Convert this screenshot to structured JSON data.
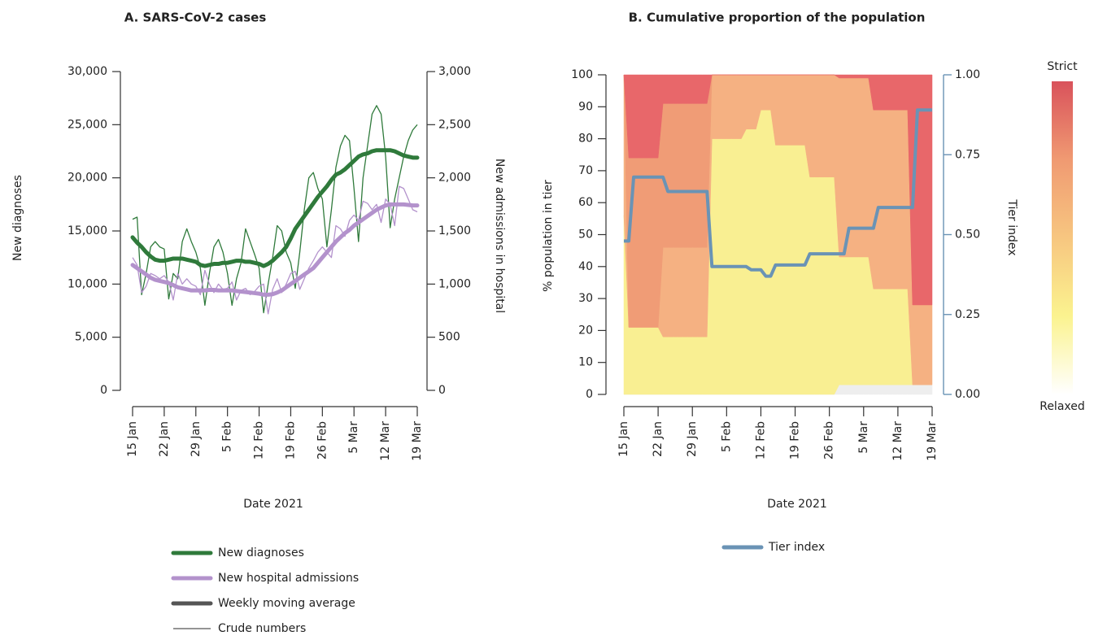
{
  "chart_data": [
    {
      "type": "line",
      "title": "A. SARS-CoV-2 cases",
      "x_label": "Date 2021",
      "y_label": "New diagnoses",
      "y2_label": "New admissions in hospital",
      "categories": [
        "15 Jan",
        null,
        null,
        null,
        null,
        null,
        null,
        "22 Jan",
        null,
        null,
        null,
        null,
        null,
        null,
        "29 Jan",
        null,
        null,
        null,
        null,
        null,
        null,
        "5 Feb",
        null,
        null,
        null,
        null,
        null,
        null,
        "12 Feb",
        null,
        null,
        null,
        null,
        null,
        null,
        "19 Feb",
        null,
        null,
        null,
        null,
        null,
        null,
        "26 Feb",
        null,
        null,
        null,
        null,
        null,
        null,
        "5 Mar",
        null,
        null,
        null,
        null,
        null,
        null,
        "12 Mar",
        null,
        null,
        null,
        null,
        null,
        null,
        "19 Mar"
      ],
      "ylim": [
        0,
        30000
      ],
      "yticks": [
        0,
        {
          "value": 5000,
          "label": "5,000"
        },
        {
          "value": 10000,
          "label": "10,000"
        },
        {
          "value": 15000,
          "label": "15,000"
        },
        {
          "value": 20000,
          "label": "20,000"
        },
        {
          "value": 25000,
          "label": "25,000"
        },
        {
          "value": 30000,
          "label": "30,000"
        }
      ],
      "y2lim": [
        0,
        3000
      ],
      "y2ticks": [
        0,
        500,
        {
          "value": 1000,
          "label": "1,000"
        },
        {
          "value": 1500,
          "label": "1,500"
        },
        {
          "value": 2000,
          "label": "2,000"
        },
        {
          "value": 2500,
          "label": "2,500"
        },
        {
          "value": 3000,
          "label": "3,000"
        }
      ],
      "series": [
        {
          "name": "New diagnoses",
          "color": "#2f7a3b",
          "values": [
            16100,
            16300,
            9000,
            11000,
            13500,
            14000,
            13500,
            13300,
            8600,
            11000,
            10500,
            14000,
            15200,
            14000,
            13000,
            11500,
            8000,
            11000,
            13500,
            14200,
            13000,
            11000,
            8000,
            10500,
            12000,
            15200,
            14000,
            12800,
            11500,
            7300,
            10000,
            12500,
            15500,
            15000,
            13000,
            12000,
            9600,
            13000,
            17000,
            20000,
            20500,
            19000,
            18000,
            13500,
            17000,
            21000,
            23000,
            24000,
            23500,
            19000,
            14000,
            20000,
            23000,
            26000,
            26800,
            26000,
            22000,
            15300,
            18000,
            20000,
            22000,
            23500,
            24500,
            25000
          ],
          "moving_average": [
            14400,
            13900,
            13500,
            13000,
            12600,
            12300,
            12200,
            12200,
            12300,
            12400,
            12400,
            12400,
            12300,
            12200,
            12100,
            11800,
            11700,
            11800,
            11900,
            11900,
            12000,
            12000,
            12100,
            12200,
            12200,
            12100,
            12100,
            12000,
            11900,
            11700,
            11900,
            12200,
            12600,
            13000,
            13500,
            14300,
            15200,
            15800,
            16400,
            17000,
            17600,
            18200,
            18700,
            19200,
            19800,
            20300,
            20500,
            20800,
            21200,
            21600,
            22000,
            22200,
            22300,
            22500,
            22600,
            22600,
            22600,
            22600,
            22500,
            22300,
            22100,
            22000,
            21900,
            21900
          ]
        },
        {
          "name": "New hospital admissions",
          "color": "#b392cc",
          "axis": "y2",
          "values": [
            1250,
            1180,
            920,
            980,
            1100,
            1080,
            1050,
            1080,
            1020,
            850,
            1100,
            1000,
            1050,
            1000,
            980,
            900,
            1130,
            1000,
            920,
            1000,
            950,
            960,
            1020,
            850,
            940,
            960,
            900,
            930,
            980,
            1000,
            720,
            950,
            1050,
            920,
            1000,
            1100,
            1120,
            950,
            1050,
            1150,
            1220,
            1300,
            1350,
            1300,
            1250,
            1550,
            1520,
            1450,
            1600,
            1650,
            1600,
            1780,
            1760,
            1700,
            1750,
            1580,
            1800,
            1750,
            1550,
            1920,
            1900,
            1800,
            1700,
            1680
          ],
          "moving_average": [
            1180,
            1150,
            1120,
            1090,
            1060,
            1040,
            1030,
            1020,
            1010,
            990,
            970,
            960,
            950,
            940,
            940,
            940,
            940,
            945,
            945,
            940,
            940,
            940,
            940,
            935,
            930,
            925,
            920,
            915,
            910,
            900,
            900,
            905,
            920,
            940,
            970,
            1000,
            1030,
            1060,
            1090,
            1120,
            1150,
            1200,
            1250,
            1300,
            1350,
            1400,
            1440,
            1480,
            1510,
            1550,
            1580,
            1610,
            1640,
            1670,
            1700,
            1720,
            1740,
            1750,
            1750,
            1750,
            1750,
            1745,
            1740,
            1740
          ]
        }
      ],
      "legend_styles": [
        {
          "name": "Weekly moving average",
          "color": "#555555",
          "width": "thick"
        },
        {
          "name": "Crude numbers",
          "color": "#555555",
          "width": "thin"
        }
      ]
    },
    {
      "type": "area",
      "title": "B. Cumulative proportion of the population",
      "x_label": "Date 2021",
      "y_label": "% population in tier",
      "y2_label": "Tier index",
      "categories": [
        "15 Jan",
        null,
        null,
        null,
        null,
        null,
        null,
        "22 Jan",
        null,
        null,
        null,
        null,
        null,
        null,
        "29 Jan",
        null,
        null,
        null,
        null,
        null,
        null,
        "5 Feb",
        null,
        null,
        null,
        null,
        null,
        null,
        "12 Feb",
        null,
        null,
        null,
        null,
        null,
        null,
        "19 Feb",
        null,
        null,
        null,
        null,
        null,
        null,
        "26 Feb",
        null,
        null,
        null,
        null,
        null,
        null,
        "5 Mar",
        null,
        null,
        null,
        null,
        null,
        null,
        "12 Mar",
        null,
        null,
        null,
        null,
        null,
        null,
        "19 Mar"
      ],
      "ylim": [
        0,
        100
      ],
      "yticks": [
        0,
        10,
        20,
        30,
        40,
        50,
        60,
        70,
        80,
        90,
        100
      ],
      "y2lim": [
        0,
        1
      ],
      "y2ticks": [
        {
          "value": 0,
          "label": "0.00"
        },
        {
          "value": 0.25,
          "label": "0.25"
        },
        {
          "value": 0.5,
          "label": "0.50"
        },
        {
          "value": 0.75,
          "label": "0.75"
        },
        {
          "value": 1,
          "label": "1.00"
        }
      ],
      "stacked": true,
      "areas": [
        {
          "color": "#eeeeee",
          "values": [
            0,
            0,
            0,
            0,
            0,
            0,
            0,
            0,
            0,
            0,
            0,
            0,
            0,
            0,
            0,
            0,
            0,
            0,
            0,
            0,
            0,
            0,
            0,
            0,
            0,
            0,
            0,
            0,
            0,
            0,
            0,
            0,
            0,
            0,
            0,
            0,
            0,
            0,
            0,
            0,
            0,
            0,
            0,
            0,
            3,
            3,
            3,
            3,
            3,
            3,
            3,
            3,
            3,
            3,
            3,
            3,
            3,
            3,
            3,
            3,
            3,
            3,
            3,
            3
          ]
        },
        {
          "color": "#f9ef92",
          "values": [
            56,
            21,
            21,
            21,
            21,
            21,
            21,
            21,
            18,
            18,
            18,
            18,
            18,
            18,
            18,
            18,
            18,
            18,
            80,
            80,
            80,
            80,
            80,
            80,
            80,
            83,
            83,
            83,
            89,
            89,
            89,
            78,
            78,
            78,
            78,
            78,
            78,
            78,
            68,
            68,
            68,
            68,
            68,
            68,
            40,
            40,
            40,
            40,
            40,
            40,
            40,
            30,
            30,
            30,
            30,
            30,
            30,
            30,
            30,
            0,
            0,
            0,
            0,
            0
          ]
        },
        {
          "color": "#f5b182",
          "values": [
            44,
            0,
            0,
            0,
            0,
            0,
            0,
            0,
            28,
            28,
            28,
            28,
            28,
            28,
            28,
            28,
            28,
            28,
            20,
            20,
            20,
            20,
            20,
            20,
            20,
            17,
            17,
            17,
            11,
            11,
            11,
            22,
            22,
            22,
            22,
            22,
            22,
            22,
            32,
            32,
            32,
            32,
            32,
            32,
            56,
            56,
            56,
            56,
            56,
            56,
            56,
            56,
            56,
            56,
            56,
            56,
            56,
            56,
            56,
            25,
            25,
            25,
            25,
            25
          ]
        },
        {
          "color": "#f09c76",
          "values": [
            0,
            53,
            53,
            53,
            53,
            53,
            53,
            53,
            45,
            45,
            45,
            45,
            45,
            45,
            45,
            45,
            45,
            45,
            0,
            0,
            0,
            0,
            0,
            0,
            0,
            0,
            0,
            0,
            0,
            0,
            0,
            0,
            0,
            0,
            0,
            0,
            0,
            0,
            0,
            0,
            0,
            0,
            0,
            0,
            0,
            0,
            0,
            0,
            0,
            0,
            0,
            0,
            0,
            0,
            0,
            0,
            0,
            0,
            0,
            0,
            0,
            0,
            0,
            0
          ]
        },
        {
          "color": "#e8676a",
          "values": [
            0,
            26,
            26,
            26,
            26,
            26,
            26,
            26,
            9,
            9,
            9,
            9,
            9,
            9,
            9,
            9,
            9,
            9,
            0,
            0,
            0,
            0,
            0,
            0,
            0,
            0,
            0,
            0,
            0,
            0,
            0,
            0,
            0,
            0,
            0,
            0,
            0,
            0,
            0,
            0,
            0,
            0,
            0,
            0,
            1,
            1,
            1,
            1,
            1,
            1,
            1,
            11,
            11,
            11,
            11,
            11,
            11,
            11,
            11,
            72,
            72,
            72,
            72,
            72
          ]
        }
      ],
      "series": [
        {
          "name": "Tier index",
          "color": "#6a93b5",
          "axis": "y2",
          "values": [
            0.48,
            0.48,
            0.68,
            0.68,
            0.68,
            0.68,
            0.68,
            0.68,
            0.68,
            0.635,
            0.635,
            0.635,
            0.635,
            0.635,
            0.635,
            0.635,
            0.635,
            0.635,
            0.4,
            0.4,
            0.4,
            0.4,
            0.4,
            0.4,
            0.4,
            0.4,
            0.39,
            0.39,
            0.39,
            0.37,
            0.37,
            0.405,
            0.405,
            0.405,
            0.405,
            0.405,
            0.405,
            0.405,
            0.44,
            0.44,
            0.44,
            0.44,
            0.44,
            0.44,
            0.44,
            0.44,
            0.52,
            0.52,
            0.52,
            0.52,
            0.52,
            0.52,
            0.585,
            0.585,
            0.585,
            0.585,
            0.585,
            0.585,
            0.585,
            0.585,
            0.89,
            0.89,
            0.89,
            0.89
          ]
        }
      ],
      "colorbar": {
        "top_label": "Strict",
        "bottom_label": "Relaxed",
        "colors": [
          "#d9525b",
          "#f09a72",
          "#f7c680",
          "#fbf38f",
          "#ffffff"
        ]
      }
    }
  ]
}
